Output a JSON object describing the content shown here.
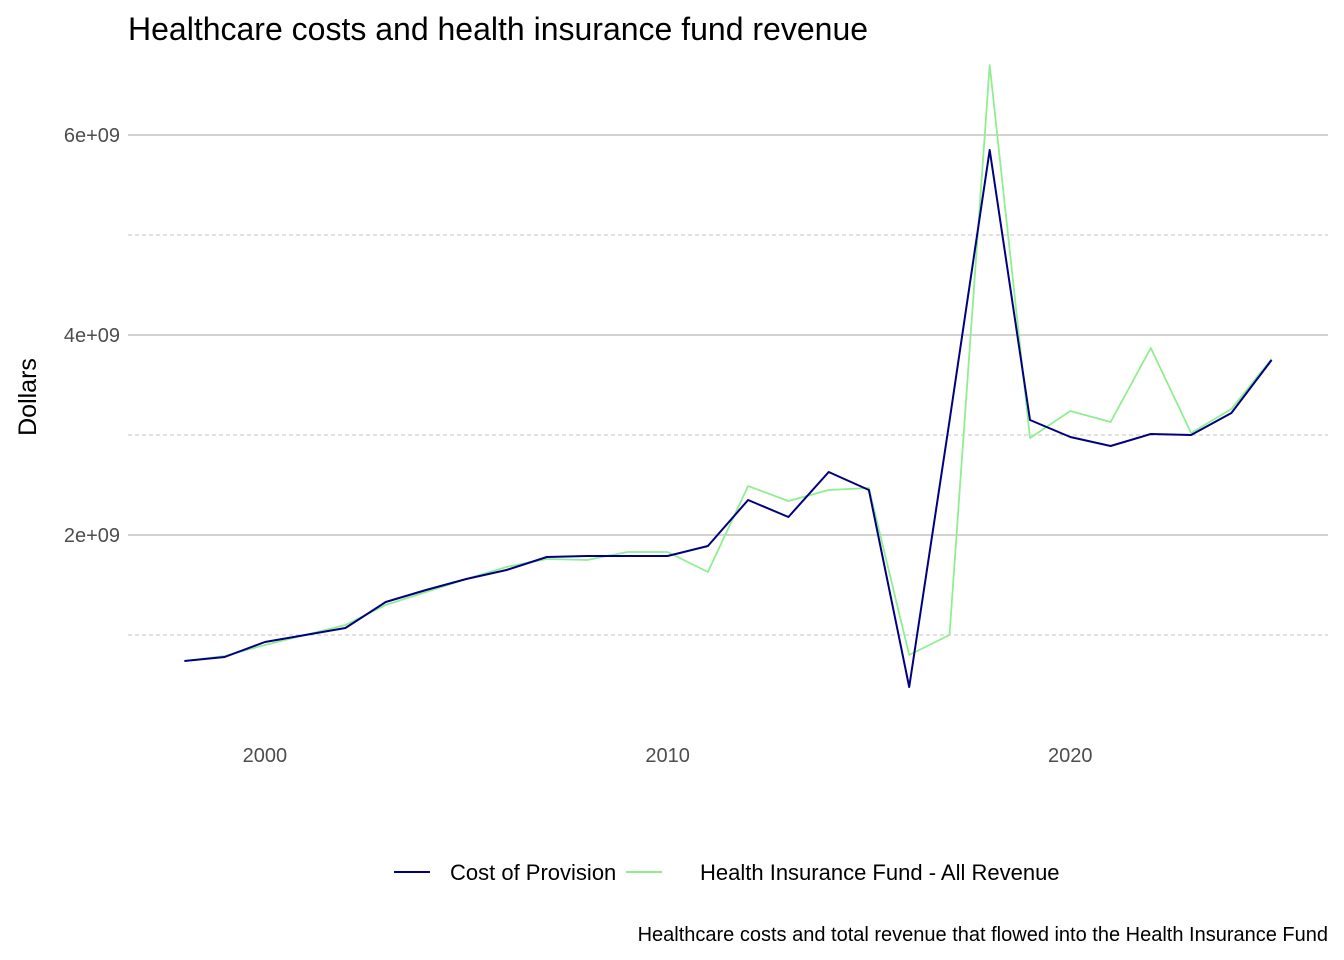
{
  "chart_data": {
    "type": "line",
    "title": "Healthcare costs and health insurance fund revenue",
    "xlabel": "",
    "ylabel": "Dollars",
    "caption": "Healthcare costs and total revenue that flowed into the Health Insurance Fund",
    "xlim": [
      1996.6,
      2026.4
    ],
    "ylim": [
      0,
      6800000000
    ],
    "x_ticks": [
      2000,
      2010,
      2020
    ],
    "x_tick_labels": [
      "2000",
      "2010",
      "2020"
    ],
    "y_ticks": [
      2000000000,
      4000000000,
      6000000000
    ],
    "y_tick_labels": [
      "2e+09",
      "4e+09",
      "6e+09"
    ],
    "grid": true,
    "legend_position": "bottom",
    "series": [
      {
        "name": "Cost of Provision",
        "color": "#000080",
        "x": [
          1998,
          1999,
          2000,
          2001,
          2002,
          2003,
          2004,
          2005,
          2006,
          2007,
          2008,
          2009,
          2010,
          2011,
          2012,
          2013,
          2014,
          2015,
          2016,
          2017,
          2018,
          2019,
          2020,
          2021,
          2022,
          2023,
          2024,
          2025
        ],
        "values": [
          740000000,
          780000000,
          930000000,
          1000000000,
          1070000000,
          1330000000,
          1450000000,
          1560000000,
          1650000000,
          1780000000,
          1790000000,
          1790000000,
          1790000000,
          1890000000,
          2350000000,
          2180000000,
          2630000000,
          2450000000,
          480000000,
          3140000000,
          5850000000,
          3150000000,
          2980000000,
          2890000000,
          3010000000,
          3000000000,
          3220000000,
          3750000000
        ]
      },
      {
        "name": "Health Insurance Fund - All Revenue",
        "color": "#90ee90",
        "x": [
          1998,
          1999,
          2000,
          2001,
          2002,
          2003,
          2004,
          2005,
          2006,
          2007,
          2008,
          2009,
          2010,
          2011,
          2012,
          2013,
          2014,
          2015,
          2016,
          2017,
          2018,
          2019,
          2020,
          2021,
          2022,
          2023,
          2024,
          2025
        ],
        "values": [
          740000000,
          790000000,
          900000000,
          1000000000,
          1100000000,
          1300000000,
          1430000000,
          1560000000,
          1680000000,
          1760000000,
          1750000000,
          1830000000,
          1830000000,
          1630000000,
          2490000000,
          2340000000,
          2450000000,
          2470000000,
          800000000,
          1000000000,
          6700000000,
          2970000000,
          3240000000,
          3130000000,
          3870000000,
          3020000000,
          3260000000,
          3760000000
        ]
      }
    ]
  }
}
